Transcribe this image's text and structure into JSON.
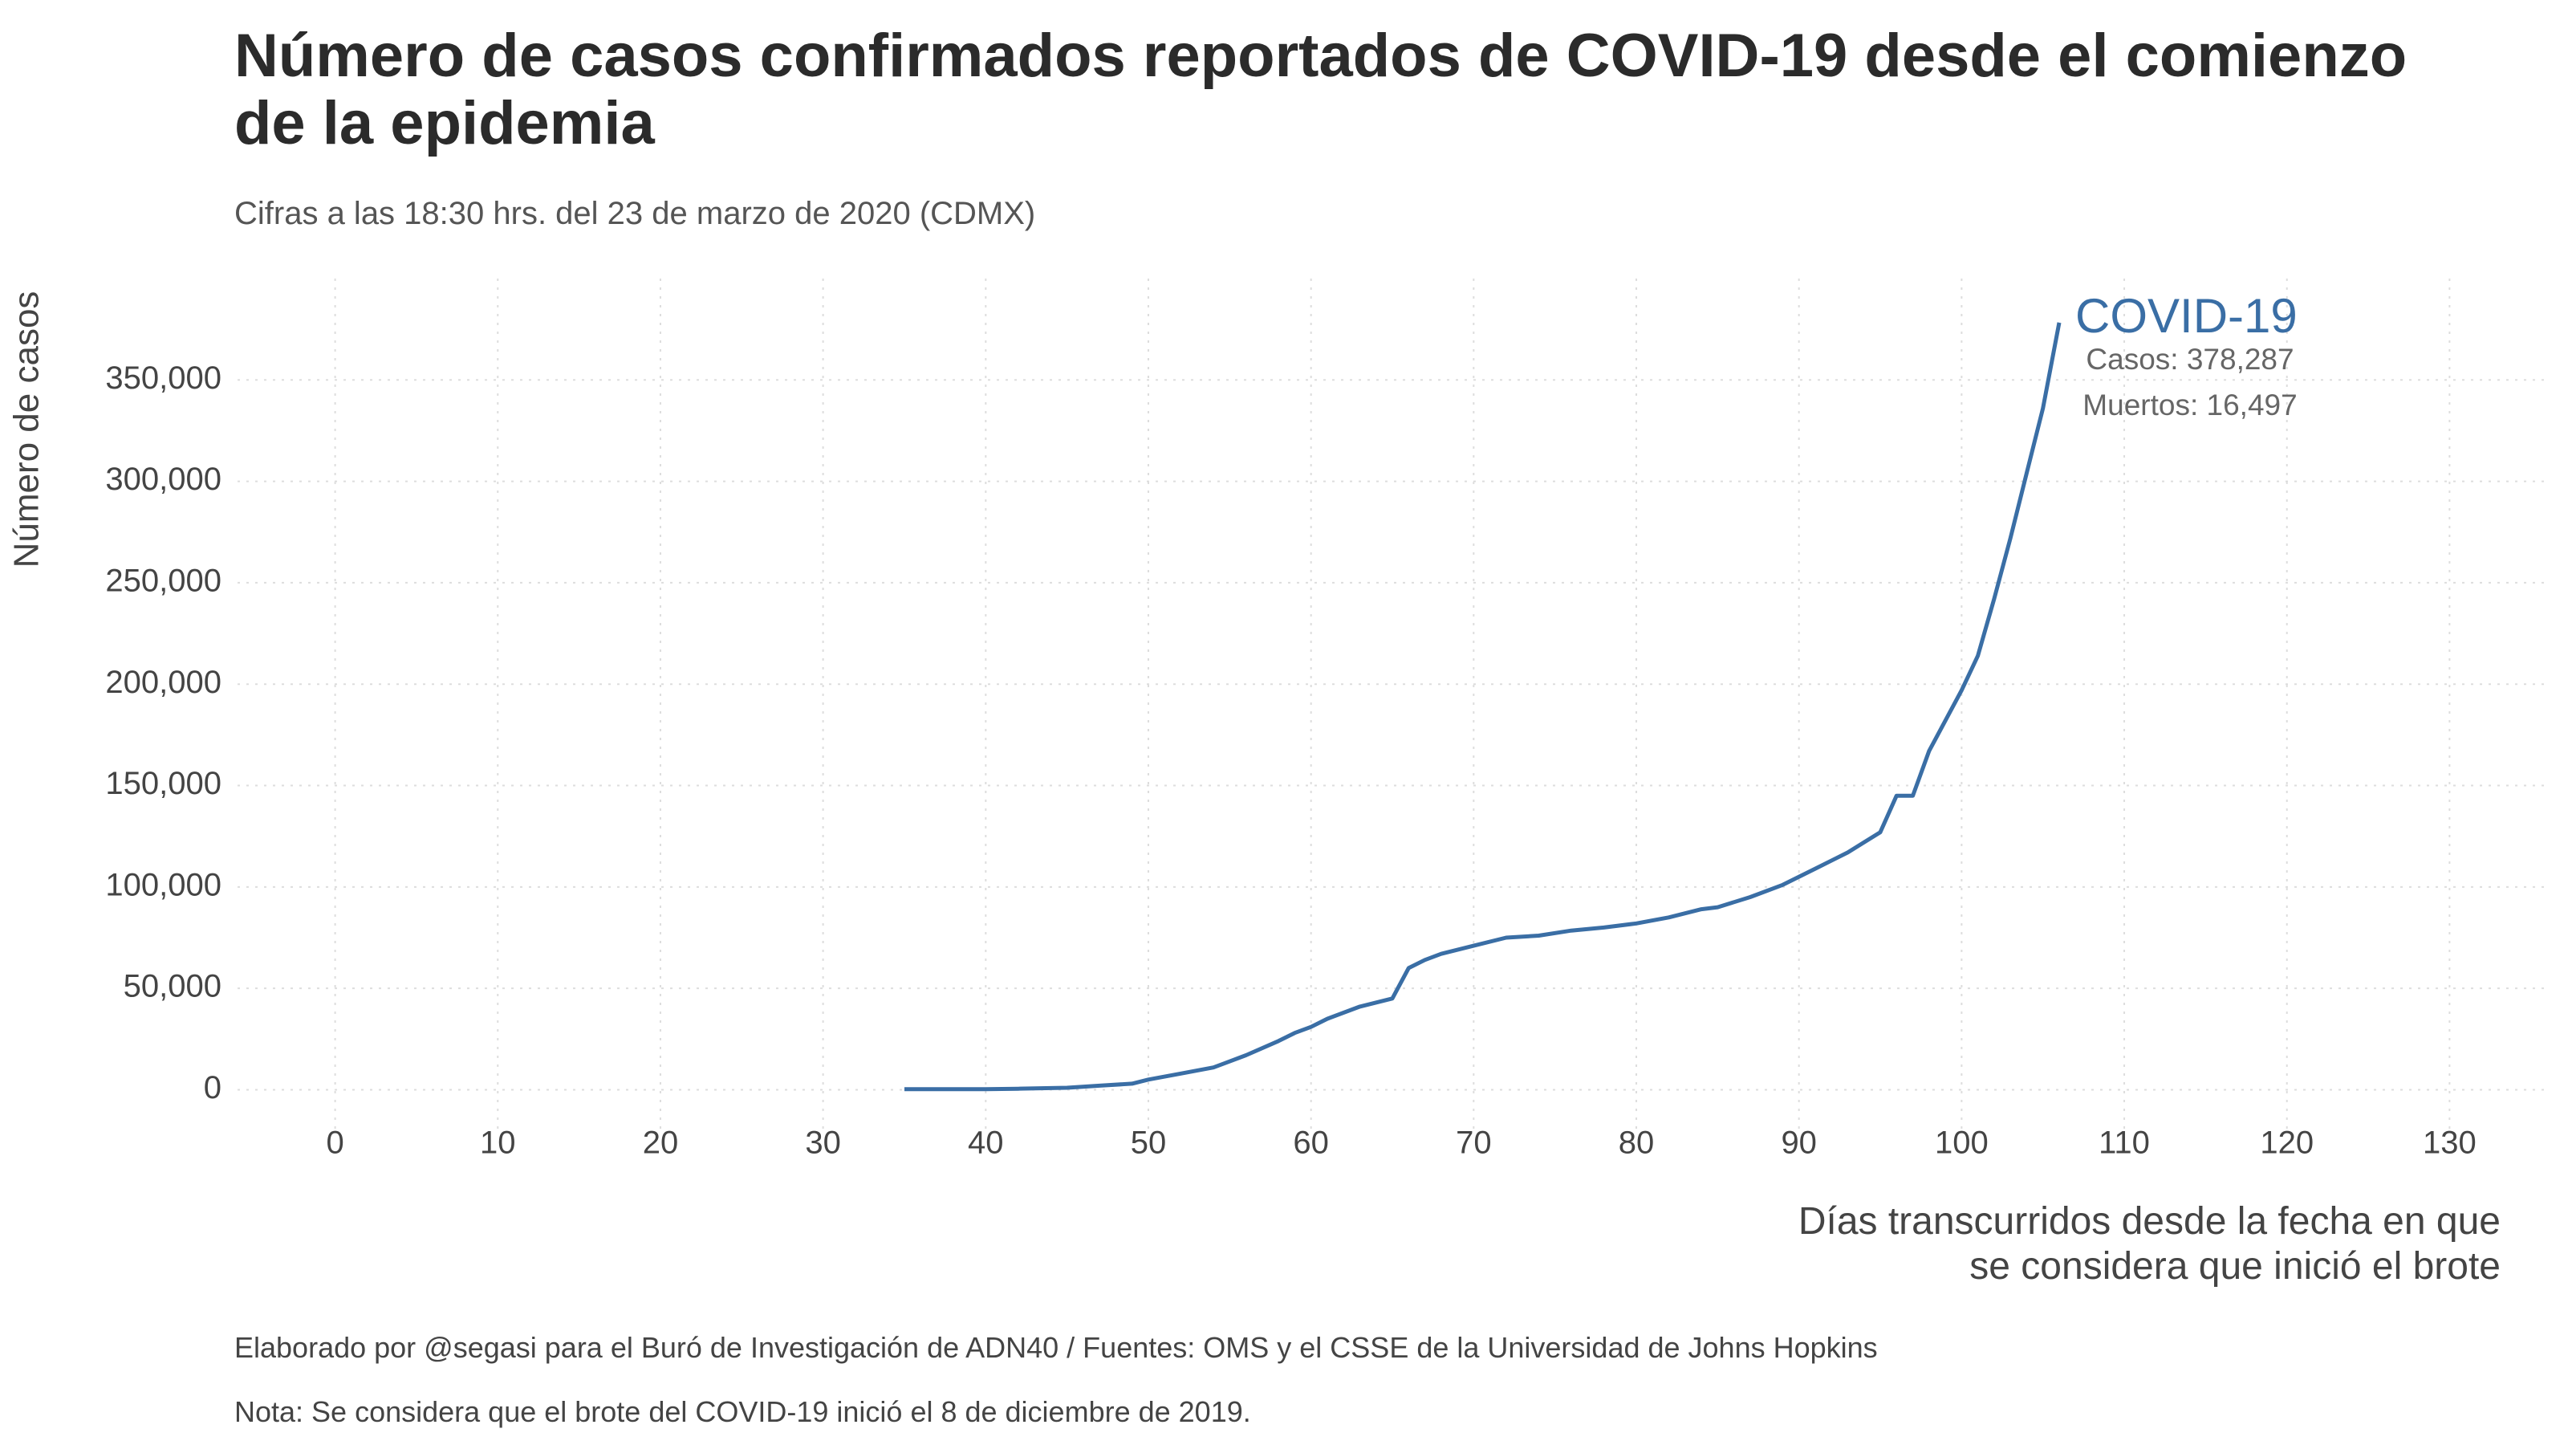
{
  "chart_data": {
    "type": "line",
    "title": "Número de casos confirmados reportados de COVID-19 desde el comienzo de la epidemia",
    "subtitle": "Cifras a las 18:30 hrs. del 23 de marzo de 2020 (CDMX)",
    "y_label": "Número de casos",
    "x_label": "Días transcurridos desde la fecha en que se considera que inició el brote",
    "footnotes": [
      "Elaborado por @segasi para el Buró de Investigación de ADN40 / Fuentes: OMS y el CSSE de la Universidad de Johns Hopkins",
      "Nota: Se considera que el brote del COVID-19 inició el 8 de diciembre de 2019."
    ],
    "annotations": [
      "Casos: 378,287",
      "Muertos: 16,497"
    ],
    "x": [
      35,
      40,
      42,
      45,
      47,
      49,
      50,
      52,
      54,
      56,
      58,
      59,
      60,
      61,
      63,
      65,
      66,
      67,
      68,
      70,
      72,
      74,
      76,
      78,
      80,
      82,
      84,
      85,
      87,
      89,
      91,
      93,
      94,
      95,
      96,
      97,
      98,
      100,
      101,
      102,
      103,
      104,
      105,
      106
    ],
    "series": [
      {
        "name": "COVID-19",
        "color": "#3a6ea5",
        "values": [
          282,
          300,
          500,
          1000,
          2000,
          3000,
          5000,
          8000,
          11000,
          17000,
          24000,
          28000,
          31000,
          35000,
          41000,
          45000,
          60000,
          64000,
          67000,
          71000,
          75000,
          76000,
          78500,
          80000,
          82000,
          85000,
          89000,
          90000,
          95000,
          101000,
          109000,
          117000,
          122000,
          127000,
          145000,
          145000,
          167000,
          197000,
          214000,
          242000,
          272000,
          304000,
          336000,
          378287
        ]
      }
    ],
    "xlim": [
      -6,
      136
    ],
    "ylim": [
      -20000,
      400000
    ],
    "xticks": [
      0,
      10,
      20,
      30,
      40,
      50,
      60,
      70,
      80,
      90,
      100,
      110,
      120,
      130
    ],
    "yticks": [
      0,
      {
        "value": 50000,
        "label": "50,000"
      },
      {
        "value": 100000,
        "label": "100,000"
      },
      {
        "value": 150000,
        "label": "150,000"
      },
      {
        "value": 200000,
        "label": "200,000"
      },
      {
        "value": 250000,
        "label": "250,000"
      },
      {
        "value": 300000,
        "label": "300,000"
      },
      {
        "value": 350000,
        "label": "350,000"
      }
    ],
    "grid": true,
    "grid_color": "#dddddd"
  }
}
